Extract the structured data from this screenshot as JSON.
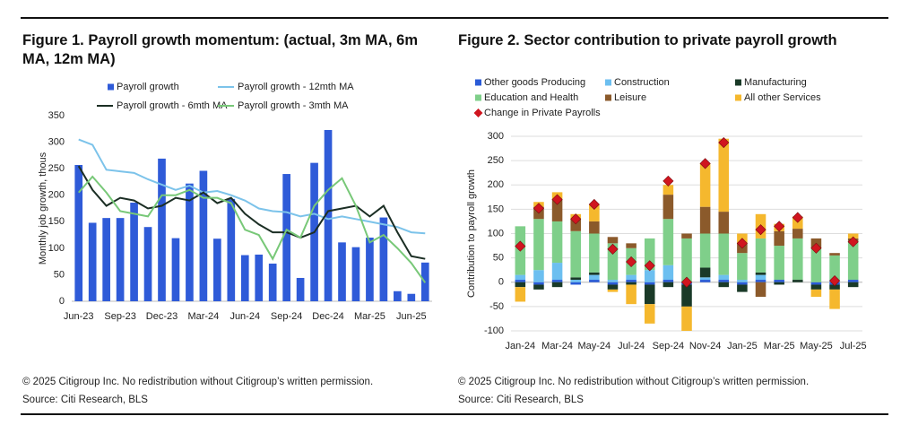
{
  "chart_data": [
    {
      "type": "combo",
      "title": "Figure 1. Payroll growth momentum: (actual, 3m MA, 6m MA, 12m MA)",
      "y_label": "Monthly job growth, thous",
      "categories": [
        "Jun-23",
        null,
        null,
        "Sep-23",
        null,
        null,
        "Dec-23",
        null,
        null,
        "Mar-24",
        null,
        null,
        "Jun-24",
        null,
        null,
        "Sep-24",
        null,
        null,
        "Dec-24",
        null,
        null,
        "Mar-25",
        null,
        null,
        "Jun-25",
        null
      ],
      "ylim": [
        0,
        350
      ],
      "yticks": [
        0,
        50,
        100,
        150,
        200,
        250,
        300,
        350
      ],
      "grid": false,
      "series": [
        {
          "name": "Payroll growth",
          "kind": "bar",
          "color": "#2f5bd8",
          "values": [
            257,
            148,
            157,
            157,
            186,
            140,
            269,
            119,
            222,
            246,
            118,
            193,
            87,
            88,
            71,
            240,
            44,
            261,
            323,
            111,
            102,
            120,
            158,
            19,
            14,
            73
          ]
        },
        {
          "name": "Payroll growth - 12mth MA",
          "kind": "line",
          "color": "#7cc3ea",
          "values": [
            305,
            295,
            248,
            245,
            242,
            230,
            220,
            210,
            218,
            205,
            208,
            200,
            190,
            175,
            170,
            168,
            160,
            165,
            155,
            160,
            155,
            150,
            145,
            140,
            130,
            128
          ]
        },
        {
          "name": "Payroll growth - 6mth MA",
          "kind": "line",
          "color": "#1b2e24",
          "values": [
            255,
            210,
            180,
            195,
            190,
            175,
            180,
            195,
            190,
            205,
            185,
            195,
            165,
            145,
            130,
            130,
            120,
            130,
            170,
            175,
            180,
            160,
            180,
            130,
            85,
            80
          ]
        },
        {
          "name": "Payroll growth - 3mth MA",
          "kind": "line",
          "color": "#78c878",
          "values": [
            205,
            235,
            205,
            170,
            165,
            160,
            200,
            200,
            210,
            195,
            195,
            185,
            135,
            125,
            80,
            135,
            120,
            180,
            210,
            232,
            180,
            111,
            125,
            100,
            72,
            35
          ]
        }
      ],
      "copyright": "© 2025 Citigroup Inc. No redistribution without Citigroup’s written permission.",
      "source": "Source: Citi Research, BLS"
    },
    {
      "type": "combo",
      "title": "Figure 2. Sector contribution to private payroll growth",
      "y_label": "Contribution to payroll growth",
      "categories": [
        "Jan-24",
        null,
        "Mar-24",
        null,
        "May-24",
        null,
        "Jul-24",
        null,
        "Sep-24",
        null,
        "Nov-24",
        null,
        "Jan-25",
        null,
        "Mar-25",
        null,
        "May-25",
        null,
        "Jul-25"
      ],
      "ylim": [
        -100,
        300
      ],
      "yticks": [
        -100,
        -50,
        0,
        50,
        100,
        150,
        200,
        250,
        300
      ],
      "grid": true,
      "series": [
        {
          "name": "Other goods Producing",
          "kind": "stack",
          "color": "#2a5bd7",
          "values": [
            5,
            -5,
            5,
            -5,
            5,
            -5,
            5,
            -5,
            5,
            -5,
            5,
            5,
            -5,
            5,
            5,
            0,
            -5,
            -5,
            5
          ]
        },
        {
          "name": "Construction",
          "kind": "stack",
          "color": "#6cbff0",
          "values": [
            10,
            25,
            35,
            5,
            10,
            5,
            10,
            25,
            30,
            0,
            5,
            10,
            5,
            10,
            0,
            0,
            0,
            5,
            0
          ]
        },
        {
          "name": "Manufacturing",
          "kind": "stack",
          "color": "#1a3a28",
          "values": [
            -10,
            -10,
            -10,
            5,
            5,
            -10,
            -5,
            -40,
            -10,
            -45,
            20,
            -10,
            -15,
            5,
            -5,
            5,
            -10,
            -10,
            -10
          ]
        },
        {
          "name": "Education and Health",
          "kind": "stack",
          "color": "#7fcf8a",
          "values": [
            100,
            105,
            85,
            95,
            80,
            75,
            55,
            65,
            95,
            90,
            70,
            85,
            55,
            70,
            70,
            85,
            70,
            50,
            80
          ]
        },
        {
          "name": "Leisure",
          "kind": "stack",
          "color": "#8b5a2b",
          "values": [
            0,
            25,
            45,
            25,
            25,
            13,
            10,
            0,
            50,
            10,
            55,
            45,
            20,
            -30,
            30,
            20,
            20,
            5,
            5
          ]
        },
        {
          "name": "All other Services",
          "kind": "stack",
          "color": "#f5b82e",
          "values": [
            -30,
            10,
            15,
            10,
            35,
            -5,
            -40,
            -40,
            20,
            -50,
            90,
            150,
            20,
            50,
            15,
            25,
            -15,
            -40,
            10
          ]
        },
        {
          "name": "Change in  Private Payrolls",
          "kind": "marker",
          "color": "#d0151f",
          "values": [
            74,
            152,
            170,
            130,
            160,
            68,
            42,
            34,
            208,
            0,
            244,
            287,
            80,
            108,
            115,
            133,
            70,
            3,
            83
          ]
        }
      ],
      "copyright": "© 2025 Citigroup Inc. No redistribution without Citigroup’s written permission.",
      "source": "Source: Citi Research, BLS"
    }
  ]
}
